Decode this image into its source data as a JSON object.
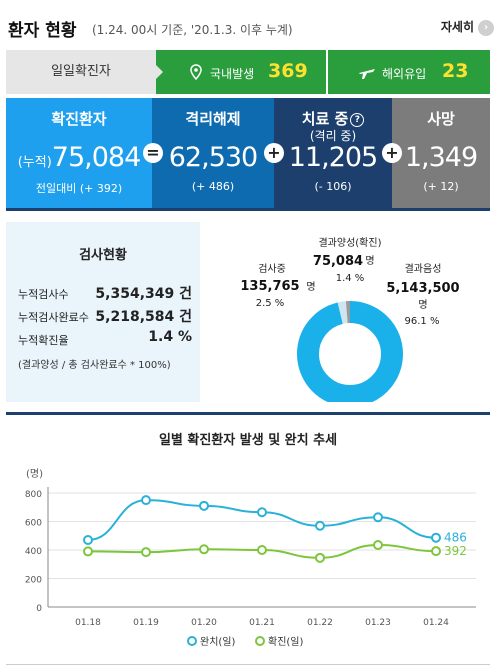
{
  "header": {
    "title": "환자 현황",
    "subtitle": "(1.24. 00시 기준, '20.1.3. 이후 누계)",
    "more_label": "자세히"
  },
  "daily": {
    "label": "일일확진자",
    "domestic_label": "국내발생",
    "domestic_value": "369",
    "overseas_label": "해외유입",
    "overseas_value": "23",
    "domestic_icon": "location-pin-icon",
    "overseas_icon": "airplane-icon"
  },
  "stats": {
    "confirmed": {
      "title": "확진환자",
      "prefix": "(누적)",
      "value": "75,084",
      "delta": "전일대비 (+ 392)"
    },
    "released": {
      "title": "격리해제",
      "value": "62,530",
      "delta": "(+ 486)"
    },
    "treating": {
      "title": "치료 중",
      "subtitle": "(격리 중)",
      "value": "11,205",
      "delta": "(- 106)"
    },
    "deaths": {
      "title": "사망",
      "value": "1,349",
      "delta": "(+ 12)"
    },
    "op_equal": "=",
    "op_plus": "+"
  },
  "tests": {
    "title": "검사현황",
    "rows": [
      {
        "label": "누적검사수",
        "value": "5,354,349 건"
      },
      {
        "label": "누적검사완료수",
        "value": "5,218,584 건"
      },
      {
        "label": "누적확진율",
        "value": "1.4 %"
      }
    ],
    "note": "(결과양성 / 총 검사완료수 * 100%)",
    "donut": {
      "positive_label": "결과양성(확진)",
      "positive_value": "75,084",
      "positive_unit": "명",
      "positive_pct": "1.4 %",
      "testing_label": "검사중",
      "testing_value": "135,765",
      "testing_unit": "명",
      "testing_pct": "2.5 %",
      "negative_label": "결과음성",
      "negative_value": "5,143,500",
      "negative_unit": "명",
      "negative_pct": "96.1 %",
      "colors": {
        "negative": "#1ab0ea",
        "testing": "#cfe6f2",
        "positive": "#9a9a9a"
      },
      "shares": {
        "positive": 1.4,
        "testing": 2.5,
        "negative": 96.1
      }
    }
  },
  "chart_data": {
    "type": "line",
    "title": "일별 확진환자 발생 및 완치 추세",
    "ylabel": "(명)",
    "categories": [
      "01.18",
      "01.19",
      "01.20",
      "01.21",
      "01.22",
      "01.23",
      "01.24"
    ],
    "yticks": [
      0,
      200,
      400,
      600,
      800
    ],
    "ylim": [
      0,
      800
    ],
    "series": [
      {
        "name": "완치(일)",
        "color": "#2ab1d8",
        "values": [
          470,
          750,
          710,
          665,
          570,
          630,
          486
        ],
        "end_label": "486"
      },
      {
        "name": "확진(일)",
        "color": "#7dc63c",
        "values": [
          390,
          385,
          405,
          400,
          345,
          435,
          392
        ],
        "end_label": "392"
      }
    ],
    "legend": "bottom"
  }
}
